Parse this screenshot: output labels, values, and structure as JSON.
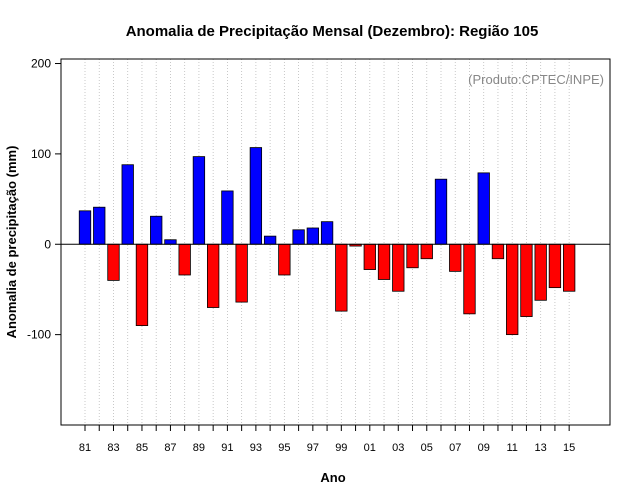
{
  "chart_data": {
    "type": "bar",
    "title": "Anomalia de Precipitação Mensal (Dezembro): Região 105",
    "xlabel": "Ano",
    "ylabel": "Anomalia de precipitação (mm)",
    "credit": "(Produto:CPTEC/INPE)",
    "ylim": [
      -200,
      205
    ],
    "yticks": [
      -100,
      0,
      100,
      200
    ],
    "categories": [
      "81",
      "82",
      "83",
      "84",
      "85",
      "86",
      "87",
      "88",
      "89",
      "90",
      "91",
      "92",
      "93",
      "94",
      "95",
      "96",
      "97",
      "98",
      "99",
      "00",
      "01",
      "02",
      "03",
      "04",
      "05",
      "06",
      "07",
      "08",
      "09",
      "10",
      "11",
      "12",
      "13",
      "14",
      "15"
    ],
    "xtick_labels": [
      "81",
      "83",
      "85",
      "87",
      "89",
      "91",
      "93",
      "95",
      "97",
      "99",
      "01",
      "03",
      "05",
      "07",
      "09",
      "11",
      "13",
      "15"
    ],
    "values": [
      37,
      41,
      -40,
      88,
      -90,
      31,
      5,
      -34,
      97,
      -70,
      59,
      -64,
      107,
      9,
      -34,
      16,
      18,
      25,
      -74,
      -2,
      -28,
      -39,
      -52,
      -26,
      -16,
      72,
      -30,
      -77,
      79,
      -16,
      -100,
      -80,
      -62,
      -48,
      -52
    ],
    "colors": {
      "positive": "#0000ff",
      "negative": "#ff0000",
      "grid": "#bbbbbb"
    },
    "grid": true
  }
}
